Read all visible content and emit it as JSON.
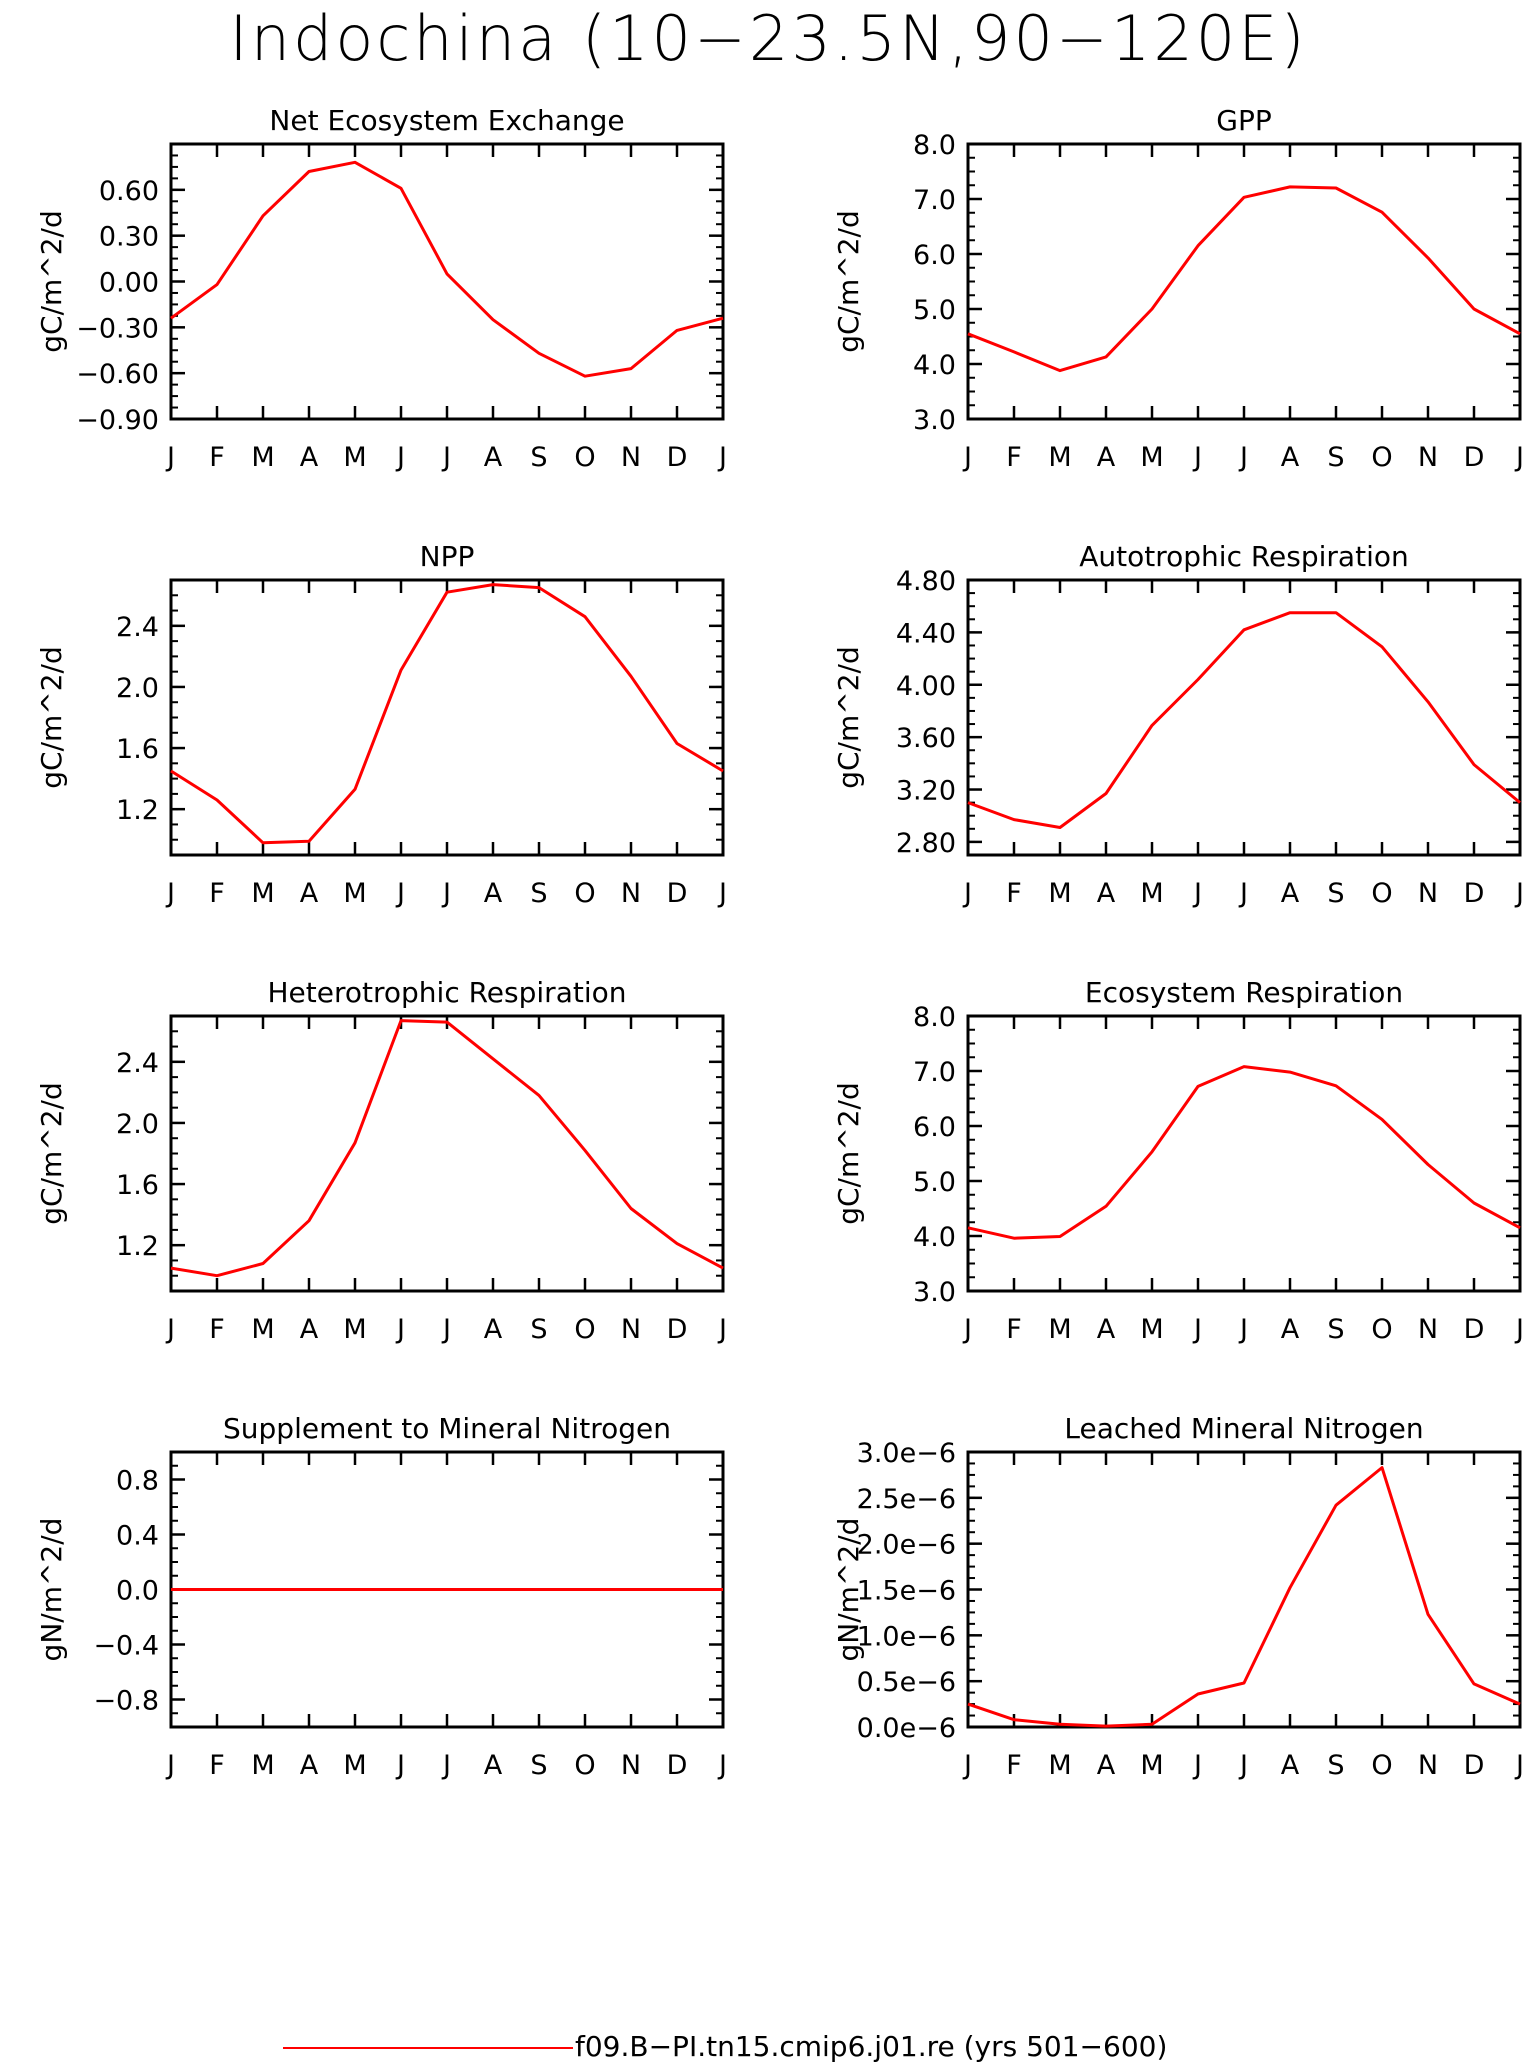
{
  "page_title": "Indochina (10−23.5N,90−120E)",
  "legend": {
    "label": "f09.B−PI.tn15.cmip6.j01.re (yrs 501−600)"
  },
  "colors": {
    "line": "#ff0000",
    "axis": "#000000"
  },
  "chart_data": [
    {
      "type": "line",
      "title": "Net Ecosystem Exchange",
      "ylabel": "gC/m^2/d",
      "categories": [
        "J",
        "F",
        "M",
        "A",
        "M",
        "J",
        "J",
        "A",
        "S",
        "O",
        "N",
        "D",
        "J"
      ],
      "values": [
        -0.24,
        -0.02,
        0.43,
        0.72,
        0.78,
        0.61,
        0.05,
        -0.25,
        -0.47,
        -0.62,
        -0.57,
        -0.32,
        -0.24
      ],
      "ylim": [
        -0.9,
        0.9
      ],
      "yticks": [
        -0.9,
        -0.6,
        -0.3,
        0.0,
        0.3,
        0.6
      ],
      "yticklabels": [
        "−0.90",
        "−0.60",
        "−0.30",
        "0.00",
        "0.30",
        "0.60"
      ]
    },
    {
      "type": "line",
      "title": "GPP",
      "ylabel": "gC/m^2/d",
      "categories": [
        "J",
        "F",
        "M",
        "A",
        "M",
        "J",
        "J",
        "A",
        "S",
        "O",
        "N",
        "D",
        "J"
      ],
      "values": [
        4.55,
        4.22,
        3.88,
        4.13,
        5.0,
        6.15,
        7.03,
        7.22,
        7.2,
        6.76,
        5.93,
        5.0,
        4.55
      ],
      "ylim": [
        3.0,
        8.0
      ],
      "yticks": [
        3.0,
        4.0,
        5.0,
        6.0,
        7.0,
        8.0
      ],
      "yticklabels": [
        "3.0",
        "4.0",
        "5.0",
        "6.0",
        "7.0",
        "8.0"
      ]
    },
    {
      "type": "line",
      "title": "NPP",
      "ylabel": "gC/m^2/d",
      "categories": [
        "J",
        "F",
        "M",
        "A",
        "M",
        "J",
        "J",
        "A",
        "S",
        "O",
        "N",
        "D",
        "J"
      ],
      "values": [
        1.45,
        1.26,
        0.98,
        0.99,
        1.33,
        2.11,
        2.62,
        2.67,
        2.65,
        2.46,
        2.07,
        1.63,
        1.45
      ],
      "ylim": [
        0.9,
        2.7
      ],
      "yticks": [
        1.2,
        1.6,
        2.0,
        2.4
      ],
      "yticklabels": [
        "1.2",
        "1.6",
        "2.0",
        "2.4"
      ]
    },
    {
      "type": "line",
      "title": "Autotrophic Respiration",
      "ylabel": "gC/m^2/d",
      "categories": [
        "J",
        "F",
        "M",
        "A",
        "M",
        "J",
        "J",
        "A",
        "S",
        "O",
        "N",
        "D",
        "J"
      ],
      "values": [
        3.1,
        2.97,
        2.91,
        3.17,
        3.69,
        4.04,
        4.42,
        4.55,
        4.55,
        4.29,
        3.87,
        3.39,
        3.1
      ],
      "ylim": [
        2.7,
        4.8
      ],
      "yticks": [
        2.8,
        3.2,
        3.6,
        4.0,
        4.4,
        4.8
      ],
      "yticklabels": [
        "2.80",
        "3.20",
        "3.60",
        "4.00",
        "4.40",
        "4.80"
      ]
    },
    {
      "type": "line",
      "title": "Heterotrophic Respiration",
      "ylabel": "gC/m^2/d",
      "categories": [
        "J",
        "F",
        "M",
        "A",
        "M",
        "J",
        "J",
        "A",
        "S",
        "O",
        "N",
        "D",
        "J"
      ],
      "values": [
        1.05,
        1.0,
        1.08,
        1.36,
        1.87,
        2.67,
        2.66,
        2.42,
        2.18,
        1.82,
        1.44,
        1.21,
        1.05
      ],
      "ylim": [
        0.9,
        2.7
      ],
      "yticks": [
        1.2,
        1.6,
        2.0,
        2.4
      ],
      "yticklabels": [
        "1.2",
        "1.6",
        "2.0",
        "2.4"
      ]
    },
    {
      "type": "line",
      "title": "Ecosystem Respiration",
      "ylabel": "gC/m^2/d",
      "categories": [
        "J",
        "F",
        "M",
        "A",
        "M",
        "J",
        "J",
        "A",
        "S",
        "O",
        "N",
        "D",
        "J"
      ],
      "values": [
        4.15,
        3.96,
        3.99,
        4.54,
        5.53,
        6.72,
        7.08,
        6.98,
        6.73,
        6.12,
        5.3,
        4.6,
        4.15
      ],
      "ylim": [
        3.0,
        8.0
      ],
      "yticks": [
        3.0,
        4.0,
        5.0,
        6.0,
        7.0,
        8.0
      ],
      "yticklabels": [
        "3.0",
        "4.0",
        "5.0",
        "6.0",
        "7.0",
        "8.0"
      ]
    },
    {
      "type": "line",
      "title": "Supplement to Mineral Nitrogen",
      "ylabel": "gN/m^2/d",
      "categories": [
        "J",
        "F",
        "M",
        "A",
        "M",
        "J",
        "J",
        "A",
        "S",
        "O",
        "N",
        "D",
        "J"
      ],
      "values": [
        0,
        0,
        0,
        0,
        0,
        0,
        0,
        0,
        0,
        0,
        0,
        0,
        0
      ],
      "ylim": [
        -1.0,
        1.0
      ],
      "yticks": [
        -0.8,
        -0.4,
        0.0,
        0.4,
        0.8
      ],
      "yticklabels": [
        "−0.8",
        "−0.4",
        "0.0",
        "0.4",
        "0.8"
      ]
    },
    {
      "type": "line",
      "title": "Leached Mineral Nitrogen",
      "ylabel": "gN/m^2/d",
      "categories": [
        "J",
        "F",
        "M",
        "A",
        "M",
        "J",
        "J",
        "A",
        "S",
        "O",
        "N",
        "D",
        "J"
      ],
      "values": [
        2.5e-07,
        8e-08,
        3e-08,
        1e-08,
        3e-08,
        3.6e-07,
        4.8e-07,
        1.52e-06,
        2.42e-06,
        2.83e-06,
        1.23e-06,
        4.7e-07,
        2.5e-07
      ],
      "ylim": [
        0,
        3e-06
      ],
      "yticks": [
        0,
        5e-07,
        1e-06,
        1.5e-06,
        2e-06,
        2.5e-06,
        3e-06
      ],
      "yticklabels": [
        "0.0e−6",
        "0.5e−6",
        "1.0e−6",
        "1.5e−6",
        "2.0e−6",
        "2.5e−6",
        "3.0e−6"
      ]
    }
  ]
}
